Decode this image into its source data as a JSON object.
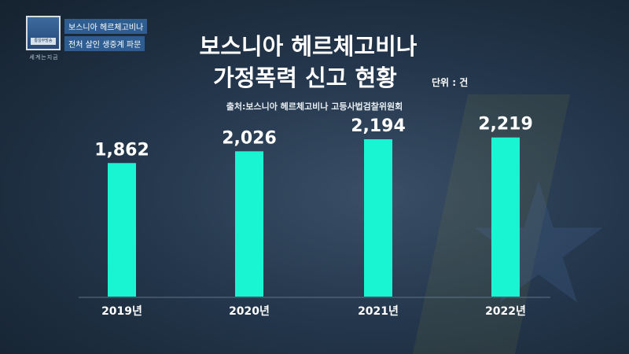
{
  "broadcast": {
    "logo_text": "통일부방송",
    "caption": "세계는지금",
    "headline_line1": "보스니아 헤르체고비나",
    "headline_line2": "전처 살인 생중계 파문"
  },
  "chart_data": {
    "type": "bar",
    "title_line1": "보스니아 헤르체고비나",
    "title_line2": "가정폭력 신고 현황",
    "unit": "단위 : 건",
    "source": "출처:보스니아 헤르체고비나 고등사법검찰위원회",
    "categories": [
      "2019년",
      "2020년",
      "2021년",
      "2022년"
    ],
    "values": [
      1862,
      2026,
      2194,
      2219
    ],
    "value_labels": [
      "1,862",
      "2,026",
      "2,194",
      "2,219"
    ],
    "ylim": [
      0,
      2600
    ],
    "bar_color": "#19f5d2",
    "grid": false
  }
}
